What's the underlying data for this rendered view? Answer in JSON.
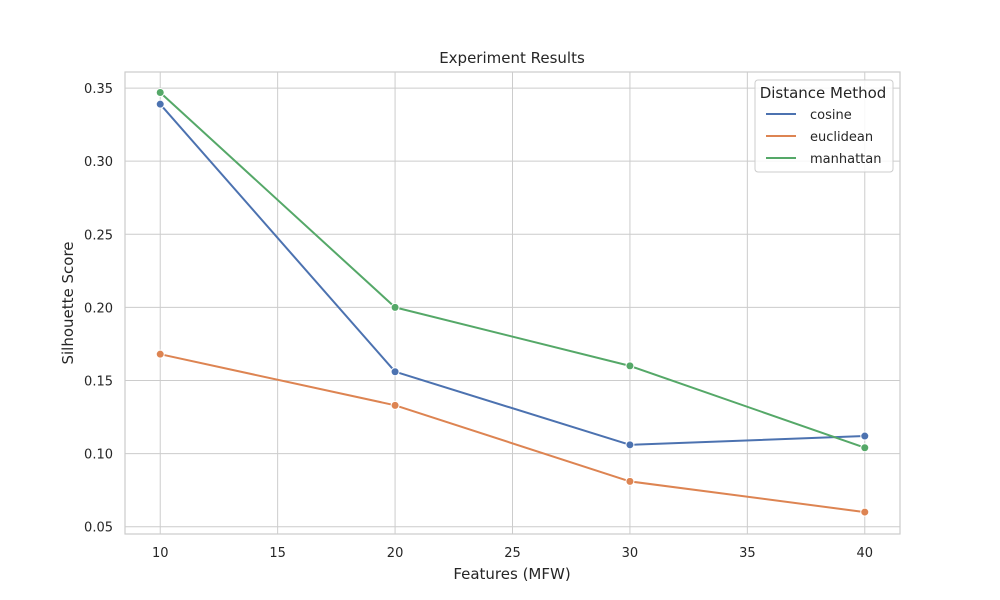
{
  "chart_data": {
    "type": "line",
    "title": "Experiment Results",
    "xlabel": "Features (MFW)",
    "ylabel": "Silhouette Score",
    "x": [
      10,
      20,
      30,
      40
    ],
    "xlim": [
      8.5,
      41.5
    ],
    "ylim": [
      0.045,
      0.361
    ],
    "xticks": [
      10,
      15,
      20,
      25,
      30,
      35,
      40
    ],
    "yticks": [
      0.05,
      0.1,
      0.15,
      0.2,
      0.25,
      0.3,
      0.35
    ],
    "xtick_labels": [
      "10",
      "15",
      "20",
      "25",
      "30",
      "35",
      "40"
    ],
    "ytick_labels": [
      "0.05",
      "0.10",
      "0.15",
      "0.20",
      "0.25",
      "0.30",
      "0.35"
    ],
    "grid": true,
    "legend": {
      "title": "Distance Method",
      "position": "top-right"
    },
    "series": [
      {
        "name": "cosine",
        "color": "#4c72b0",
        "values": [
          0.339,
          0.156,
          0.106,
          0.112
        ]
      },
      {
        "name": "euclidean",
        "color": "#dd8452",
        "values": [
          0.168,
          0.133,
          0.081,
          0.06
        ]
      },
      {
        "name": "manhattan",
        "color": "#55a868",
        "values": [
          0.347,
          0.2,
          0.16,
          0.104
        ]
      }
    ]
  }
}
